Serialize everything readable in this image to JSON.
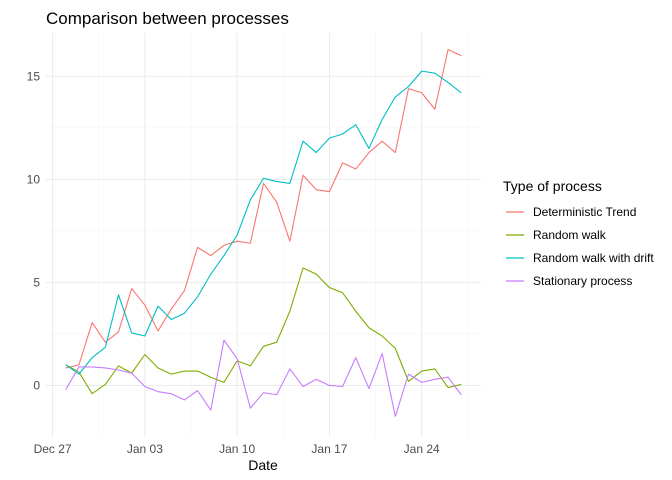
{
  "chart_data": {
    "type": "line",
    "title": "Comparison between processes",
    "xlabel": "Date",
    "ylabel": "",
    "x_start": "2020-12-28",
    "x": [
      "2020-12-28",
      "2020-12-29",
      "2020-12-30",
      "2020-12-31",
      "2021-01-01",
      "2021-01-02",
      "2021-01-03",
      "2021-01-04",
      "2021-01-05",
      "2021-01-06",
      "2021-01-07",
      "2021-01-08",
      "2021-01-09",
      "2021-01-10",
      "2021-01-11",
      "2021-01-12",
      "2021-01-13",
      "2021-01-14",
      "2021-01-15",
      "2021-01-16",
      "2021-01-17",
      "2021-01-18",
      "2021-01-19",
      "2021-01-20",
      "2021-01-21",
      "2021-01-22",
      "2021-01-23",
      "2021-01-24",
      "2021-01-25",
      "2021-01-26",
      "2021-01-27"
    ],
    "xlim": [
      "2020-12-26T12:00",
      "2021-01-28T12:00"
    ],
    "ylim": [
      -2.5,
      17.1
    ],
    "x_ticks": [
      {
        "date": "2020-12-27",
        "label": "Dec 27"
      },
      {
        "date": "2021-01-03",
        "label": "Jan 03"
      },
      {
        "date": "2021-01-10",
        "label": "Jan 10"
      },
      {
        "date": "2021-01-17",
        "label": "Jan 17"
      },
      {
        "date": "2021-01-24",
        "label": "Jan 24"
      }
    ],
    "y_ticks": [
      0,
      5,
      10,
      15
    ],
    "grid": true,
    "legend": {
      "title": "Type of process",
      "position": "right"
    },
    "series": [
      {
        "name": "Deterministic Trend",
        "color": "#F8766D",
        "values": [
          0.85,
          1.0,
          3.05,
          2.1,
          2.6,
          4.7,
          3.9,
          2.65,
          3.7,
          4.6,
          6.7,
          6.3,
          6.8,
          7.0,
          6.9,
          9.8,
          8.9,
          7.0,
          10.2,
          9.5,
          9.4,
          10.8,
          10.5,
          11.3,
          11.85,
          11.3,
          14.4,
          14.2,
          13.4,
          16.3,
          16.0
        ]
      },
      {
        "name": "Random walk",
        "color": "#7CAE00",
        "values": [
          1.0,
          0.65,
          -0.4,
          0.05,
          0.95,
          0.6,
          1.5,
          0.85,
          0.55,
          0.7,
          0.7,
          0.4,
          0.15,
          1.2,
          0.95,
          1.9,
          2.1,
          3.6,
          5.7,
          5.4,
          4.75,
          4.5,
          3.6,
          2.8,
          2.4,
          1.8,
          0.2,
          0.7,
          0.8,
          -0.1,
          0.05
        ]
      },
      {
        "name": "Random walk with drift",
        "color": "#00BFC4",
        "values": [
          1.0,
          0.55,
          1.35,
          1.85,
          4.4,
          2.55,
          2.4,
          3.85,
          3.2,
          3.5,
          4.3,
          5.4,
          6.3,
          7.3,
          9.0,
          10.05,
          9.9,
          9.8,
          11.85,
          11.3,
          12.0,
          12.2,
          12.65,
          11.5,
          12.9,
          14.0,
          14.5,
          15.25,
          15.15,
          14.7,
          14.2
        ]
      },
      {
        "name": "Stationary process",
        "color": "#C77CFF",
        "values": [
          -0.2,
          0.9,
          0.9,
          0.85,
          0.75,
          0.6,
          -0.05,
          -0.3,
          -0.4,
          -0.7,
          -0.25,
          -1.2,
          2.2,
          1.3,
          -1.1,
          -0.35,
          -0.45,
          0.8,
          -0.05,
          0.3,
          0.0,
          -0.05,
          1.35,
          -0.15,
          1.55,
          -1.5,
          0.55,
          0.15,
          0.3,
          0.4,
          -0.45
        ]
      }
    ]
  }
}
